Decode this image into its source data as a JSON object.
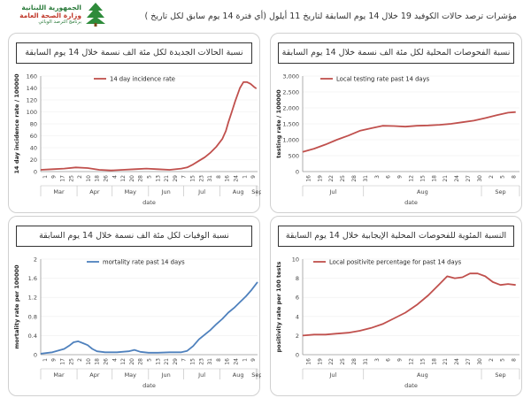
{
  "header": {
    "title": "مؤشرات ترصد حالات الكوفيد 19 خلال 14 يوم السابقة لتاريخ 11 أيلول (أي فترة 14 يوم سابق لكل تاريخ )",
    "logo_line1": "الجمهورية اللبنانية",
    "logo_line2": "وزارة الصحة العامة",
    "logo_line3": "برنامج الترصد الوبائي"
  },
  "colors": {
    "accent": "#c0504d",
    "blue": "#4f81bd",
    "panel_border": "#d0d0d0"
  },
  "chart_data": [
    {
      "id": "incidence",
      "type": "line",
      "title": "نسبة الحالات الجديدة لكل مئة الف نسمة خلال 14 يوم السابقة",
      "series_name": "14 day incidence rate",
      "color": "#c0504d",
      "ylabel": "14 day incidence rate / 100000",
      "xlabel": "date",
      "ylim": [
        0,
        160
      ],
      "yticks": [
        0,
        20,
        40,
        60,
        80,
        100,
        120,
        140,
        160
      ],
      "ytick_labels": [
        "0",
        "20",
        "40",
        "60",
        "80",
        "100",
        "120",
        "140",
        "160"
      ],
      "xlim": [
        0,
        185
      ],
      "xticks": [
        "1",
        "9",
        "17",
        "25",
        "2",
        "10",
        "18",
        "26",
        "4",
        "12",
        "20",
        "28",
        "5",
        "13",
        "21",
        "29",
        "7",
        "15",
        "23",
        "31",
        "8",
        "16",
        "24",
        "1",
        "9"
      ],
      "months": [
        "Mar",
        "Apr",
        "May",
        "Jun",
        "Jul",
        "Aug",
        "Sep"
      ],
      "month_bounds": [
        0,
        31,
        61,
        92,
        122,
        153,
        184,
        185
      ],
      "x": [
        0,
        10,
        20,
        30,
        40,
        50,
        60,
        70,
        80,
        90,
        100,
        110,
        120,
        125,
        130,
        135,
        140,
        145,
        150,
        155,
        158,
        160,
        163,
        166,
        170,
        173,
        176,
        179,
        182,
        184
      ],
      "values": [
        3,
        4,
        5,
        7,
        6,
        3,
        2,
        3,
        4,
        5,
        4,
        3,
        5,
        7,
        12,
        18,
        24,
        32,
        42,
        55,
        68,
        82,
        100,
        118,
        140,
        150,
        150,
        147,
        142,
        139
      ]
    },
    {
      "id": "testing",
      "type": "line",
      "title": "نسبة الفحوصات المحلية لكل مئة الف نسمة خلال 14 يوم السابقة",
      "series_name": "Local testing rate past 14 days",
      "color": "#c0504d",
      "ylabel": "testing rate / 100000",
      "xlabel": "date",
      "ylim": [
        0,
        3000
      ],
      "yticks": [
        0,
        500,
        1000,
        1500,
        2000,
        2500,
        3000
      ],
      "ytick_labels": [
        "0",
        "500",
        "1,000",
        "1,500",
        "2,000",
        "2,500",
        "3,000"
      ],
      "xlim": [
        0,
        57
      ],
      "xticks": [
        "16",
        "19",
        "22",
        "25",
        "28",
        "31",
        "3",
        "6",
        "9",
        "12",
        "15",
        "18",
        "21",
        "24",
        "27",
        "30",
        "2",
        "5",
        "8"
      ],
      "months": [
        "Jul",
        "Aug",
        "Sep"
      ],
      "month_bounds": [
        0,
        16,
        47,
        57
      ],
      "x": [
        0,
        3,
        6,
        9,
        12,
        15,
        18,
        21,
        24,
        27,
        30,
        33,
        36,
        39,
        42,
        45,
        48,
        51,
        54,
        56
      ],
      "values": [
        620,
        720,
        850,
        1000,
        1130,
        1280,
        1360,
        1440,
        1430,
        1410,
        1440,
        1450,
        1470,
        1500,
        1550,
        1600,
        1680,
        1770,
        1850,
        1870
      ]
    },
    {
      "id": "mortality",
      "type": "line",
      "title": "نسبة الوفيات لكل مئة الف نسمة خلال 14 يوم السابقة",
      "series_name": "mortality rate past 14 days",
      "color": "#4f81bd",
      "ylabel": "mortality rate per 100000",
      "xlabel": "date",
      "ylim": [
        0,
        2
      ],
      "yticks": [
        0,
        0.4,
        0.8,
        1.2,
        1.6,
        2
      ],
      "ytick_labels": [
        "0",
        "0.4",
        "0.8",
        "1.2",
        "1.6",
        "2"
      ],
      "xlim": [
        0,
        185
      ],
      "xticks": [
        "1",
        "9",
        "17",
        "25",
        "2",
        "10",
        "18",
        "26",
        "4",
        "12",
        "20",
        "28",
        "5",
        "13",
        "21",
        "29",
        "7",
        "15",
        "23",
        "31",
        "8",
        "16",
        "24",
        "1",
        "9"
      ],
      "months": [
        "Mar",
        "Apr",
        "May",
        "Jun",
        "Jul",
        "Aug",
        "Sep"
      ],
      "month_bounds": [
        0,
        31,
        61,
        92,
        122,
        153,
        184,
        185
      ],
      "x": [
        0,
        10,
        20,
        25,
        28,
        32,
        36,
        40,
        44,
        48,
        55,
        65,
        75,
        80,
        85,
        92,
        100,
        110,
        120,
        125,
        130,
        135,
        140,
        145,
        150,
        155,
        160,
        165,
        170,
        175,
        180,
        185
      ],
      "values": [
        0.02,
        0.05,
        0.12,
        0.2,
        0.26,
        0.28,
        0.24,
        0.2,
        0.12,
        0.07,
        0.05,
        0.05,
        0.07,
        0.1,
        0.06,
        0.04,
        0.04,
        0.05,
        0.05,
        0.08,
        0.18,
        0.32,
        0.42,
        0.52,
        0.64,
        0.75,
        0.88,
        0.98,
        1.1,
        1.22,
        1.36,
        1.52
      ]
    },
    {
      "id": "positivity",
      "type": "line",
      "title": "النسبة المئوية للفحوصات المحلية الإيجابية خلال 14 يوم السابقة",
      "series_name": "Local positivite percentage for past 14 days",
      "color": "#c0504d",
      "ylabel": "positivity rate per 100 tests",
      "xlabel": "date",
      "ylim": [
        0,
        10
      ],
      "yticks": [
        0,
        2,
        4,
        6,
        8,
        10
      ],
      "ytick_labels": [
        "0",
        "2",
        "4",
        "6",
        "8",
        "10"
      ],
      "xlim": [
        0,
        57
      ],
      "xticks": [
        "16",
        "19",
        "22",
        "25",
        "28",
        "31",
        "3",
        "6",
        "9",
        "12",
        "15",
        "18",
        "21",
        "24",
        "27",
        "30",
        "2",
        "5",
        "8"
      ],
      "months": [
        "Jul",
        "Aug",
        "Sep"
      ],
      "month_bounds": [
        0,
        16,
        47,
        57
      ],
      "x": [
        0,
        3,
        6,
        9,
        12,
        15,
        18,
        21,
        24,
        27,
        30,
        33,
        36,
        38,
        40,
        42,
        44,
        46,
        48,
        50,
        52,
        54,
        56
      ],
      "values": [
        2.0,
        2.1,
        2.1,
        2.2,
        2.3,
        2.5,
        2.8,
        3.2,
        3.8,
        4.4,
        5.2,
        6.2,
        7.4,
        8.2,
        8.0,
        8.1,
        8.5,
        8.5,
        8.2,
        7.6,
        7.3,
        7.4,
        7.3
      ]
    }
  ]
}
